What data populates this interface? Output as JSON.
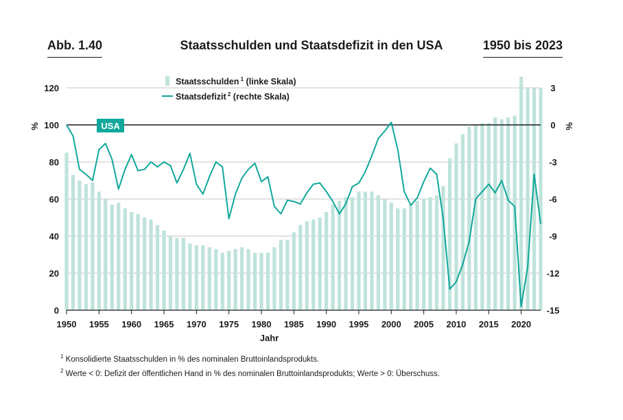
{
  "header": {
    "figure_label": "Abb. 1.40",
    "title": "Staatsschulden und Staatsdefizit in den USA",
    "period": "1950 bis 2023"
  },
  "footnotes": [
    {
      "mark": "1",
      "text": "Konsolidierte Staatsschulden in % des nominalen Bruttoinlandsprodukts."
    },
    {
      "mark": "2",
      "text": "Werte < 0: Defizit der öffentlichen Hand in % des nominalen Bruttoinlandsprodukts; Werte > 0: Überschuss."
    }
  ],
  "colors": {
    "debt_bars": "#bfe3dc",
    "deficit_line": "#0fa79a",
    "country_badge": "#12a89b",
    "grid": "#b3b3b3",
    "zero_line": "#1a1a1a"
  },
  "chart_data": {
    "type": "bar+line",
    "xlabel": "Jahr",
    "ylabel_left": "%",
    "ylabel_right": "%",
    "country_badge": "USA",
    "x_ticks": [
      1950,
      1955,
      1960,
      1965,
      1970,
      1975,
      1980,
      1985,
      1990,
      1995,
      2000,
      2005,
      2010,
      2015,
      2020
    ],
    "y_left": {
      "lim": [
        0,
        120
      ],
      "ticks": [
        0,
        20,
        40,
        60,
        80,
        100,
        120
      ]
    },
    "y_right": {
      "lim": [
        -15,
        3
      ],
      "ticks": [
        -15,
        -12,
        -9,
        -6,
        -3,
        0,
        3
      ],
      "tick_labels": [
        "-15",
        "-12",
        "-9",
        "-6",
        "-3",
        "0",
        "3"
      ]
    },
    "grid": true,
    "legend": {
      "position": "top-left",
      "entries": [
        {
          "label": "Staatsschulden",
          "sup": "1",
          "suffix": " (linke Skala)",
          "style": "bar"
        },
        {
          "label": "Staatsdefizit",
          "sup": "2",
          "suffix": " (rechte Skala)",
          "style": "line"
        }
      ]
    },
    "years": [
      1950,
      1951,
      1952,
      1953,
      1954,
      1955,
      1956,
      1957,
      1958,
      1959,
      1960,
      1961,
      1962,
      1963,
      1964,
      1965,
      1966,
      1967,
      1968,
      1969,
      1970,
      1971,
      1972,
      1973,
      1974,
      1975,
      1976,
      1977,
      1978,
      1979,
      1980,
      1981,
      1982,
      1983,
      1984,
      1985,
      1986,
      1987,
      1988,
      1989,
      1990,
      1991,
      1992,
      1993,
      1994,
      1995,
      1996,
      1997,
      1998,
      1999,
      2000,
      2001,
      2002,
      2003,
      2004,
      2005,
      2006,
      2007,
      2008,
      2009,
      2010,
      2011,
      2012,
      2013,
      2014,
      2015,
      2016,
      2017,
      2018,
      2019,
      2020,
      2021,
      2022,
      2023
    ],
    "series": [
      {
        "name": "Staatsschulden",
        "axis": "left",
        "kind": "bar",
        "values": [
          85,
          73,
          70,
          68,
          69,
          64,
          60,
          57,
          58,
          55,
          53,
          52,
          50,
          49,
          46,
          43,
          40,
          39,
          39,
          36,
          35,
          35,
          34,
          33,
          31,
          32,
          33,
          34,
          33,
          31,
          31,
          31,
          34,
          38,
          38,
          42,
          46,
          48,
          49,
          50,
          53,
          57,
          59,
          61,
          61,
          64,
          64,
          64,
          62,
          60,
          58,
          55,
          55,
          57,
          59,
          60,
          61,
          62,
          67,
          82,
          90,
          95,
          99,
          100,
          101,
          101,
          104,
          103,
          104,
          105,
          126,
          120,
          120,
          120
        ]
      },
      {
        "name": "Staatsdefizit",
        "axis": "right",
        "kind": "line",
        "values": [
          0,
          -0.9,
          -3.6,
          -4.0,
          -4.5,
          -2.0,
          -1.5,
          -2.8,
          -5.2,
          -3.6,
          -2.4,
          -3.7,
          -3.6,
          -3.0,
          -3.4,
          -3.0,
          -3.3,
          -4.7,
          -3.6,
          -2.3,
          -4.8,
          -5.6,
          -4.2,
          -3.0,
          -3.4,
          -7.6,
          -5.6,
          -4.3,
          -3.6,
          -3.1,
          -4.6,
          -4.2,
          -6.6,
          -7.2,
          -6.1,
          -6.2,
          -6.4,
          -5.5,
          -4.8,
          -4.7,
          -5.4,
          -6.2,
          -7.2,
          -6.4,
          -5.0,
          -4.7,
          -3.8,
          -2.5,
          -1.1,
          -0.5,
          0.2,
          -2.0,
          -5.4,
          -6.5,
          -5.9,
          -4.6,
          -3.5,
          -4.0,
          -7.6,
          -13.3,
          -12.7,
          -11.3,
          -9.4,
          -6.0,
          -5.4,
          -4.8,
          -5.5,
          -4.5,
          -6.1,
          -6.6,
          -14.7,
          -11.5,
          -4.0,
          -8.0
        ]
      }
    ]
  }
}
